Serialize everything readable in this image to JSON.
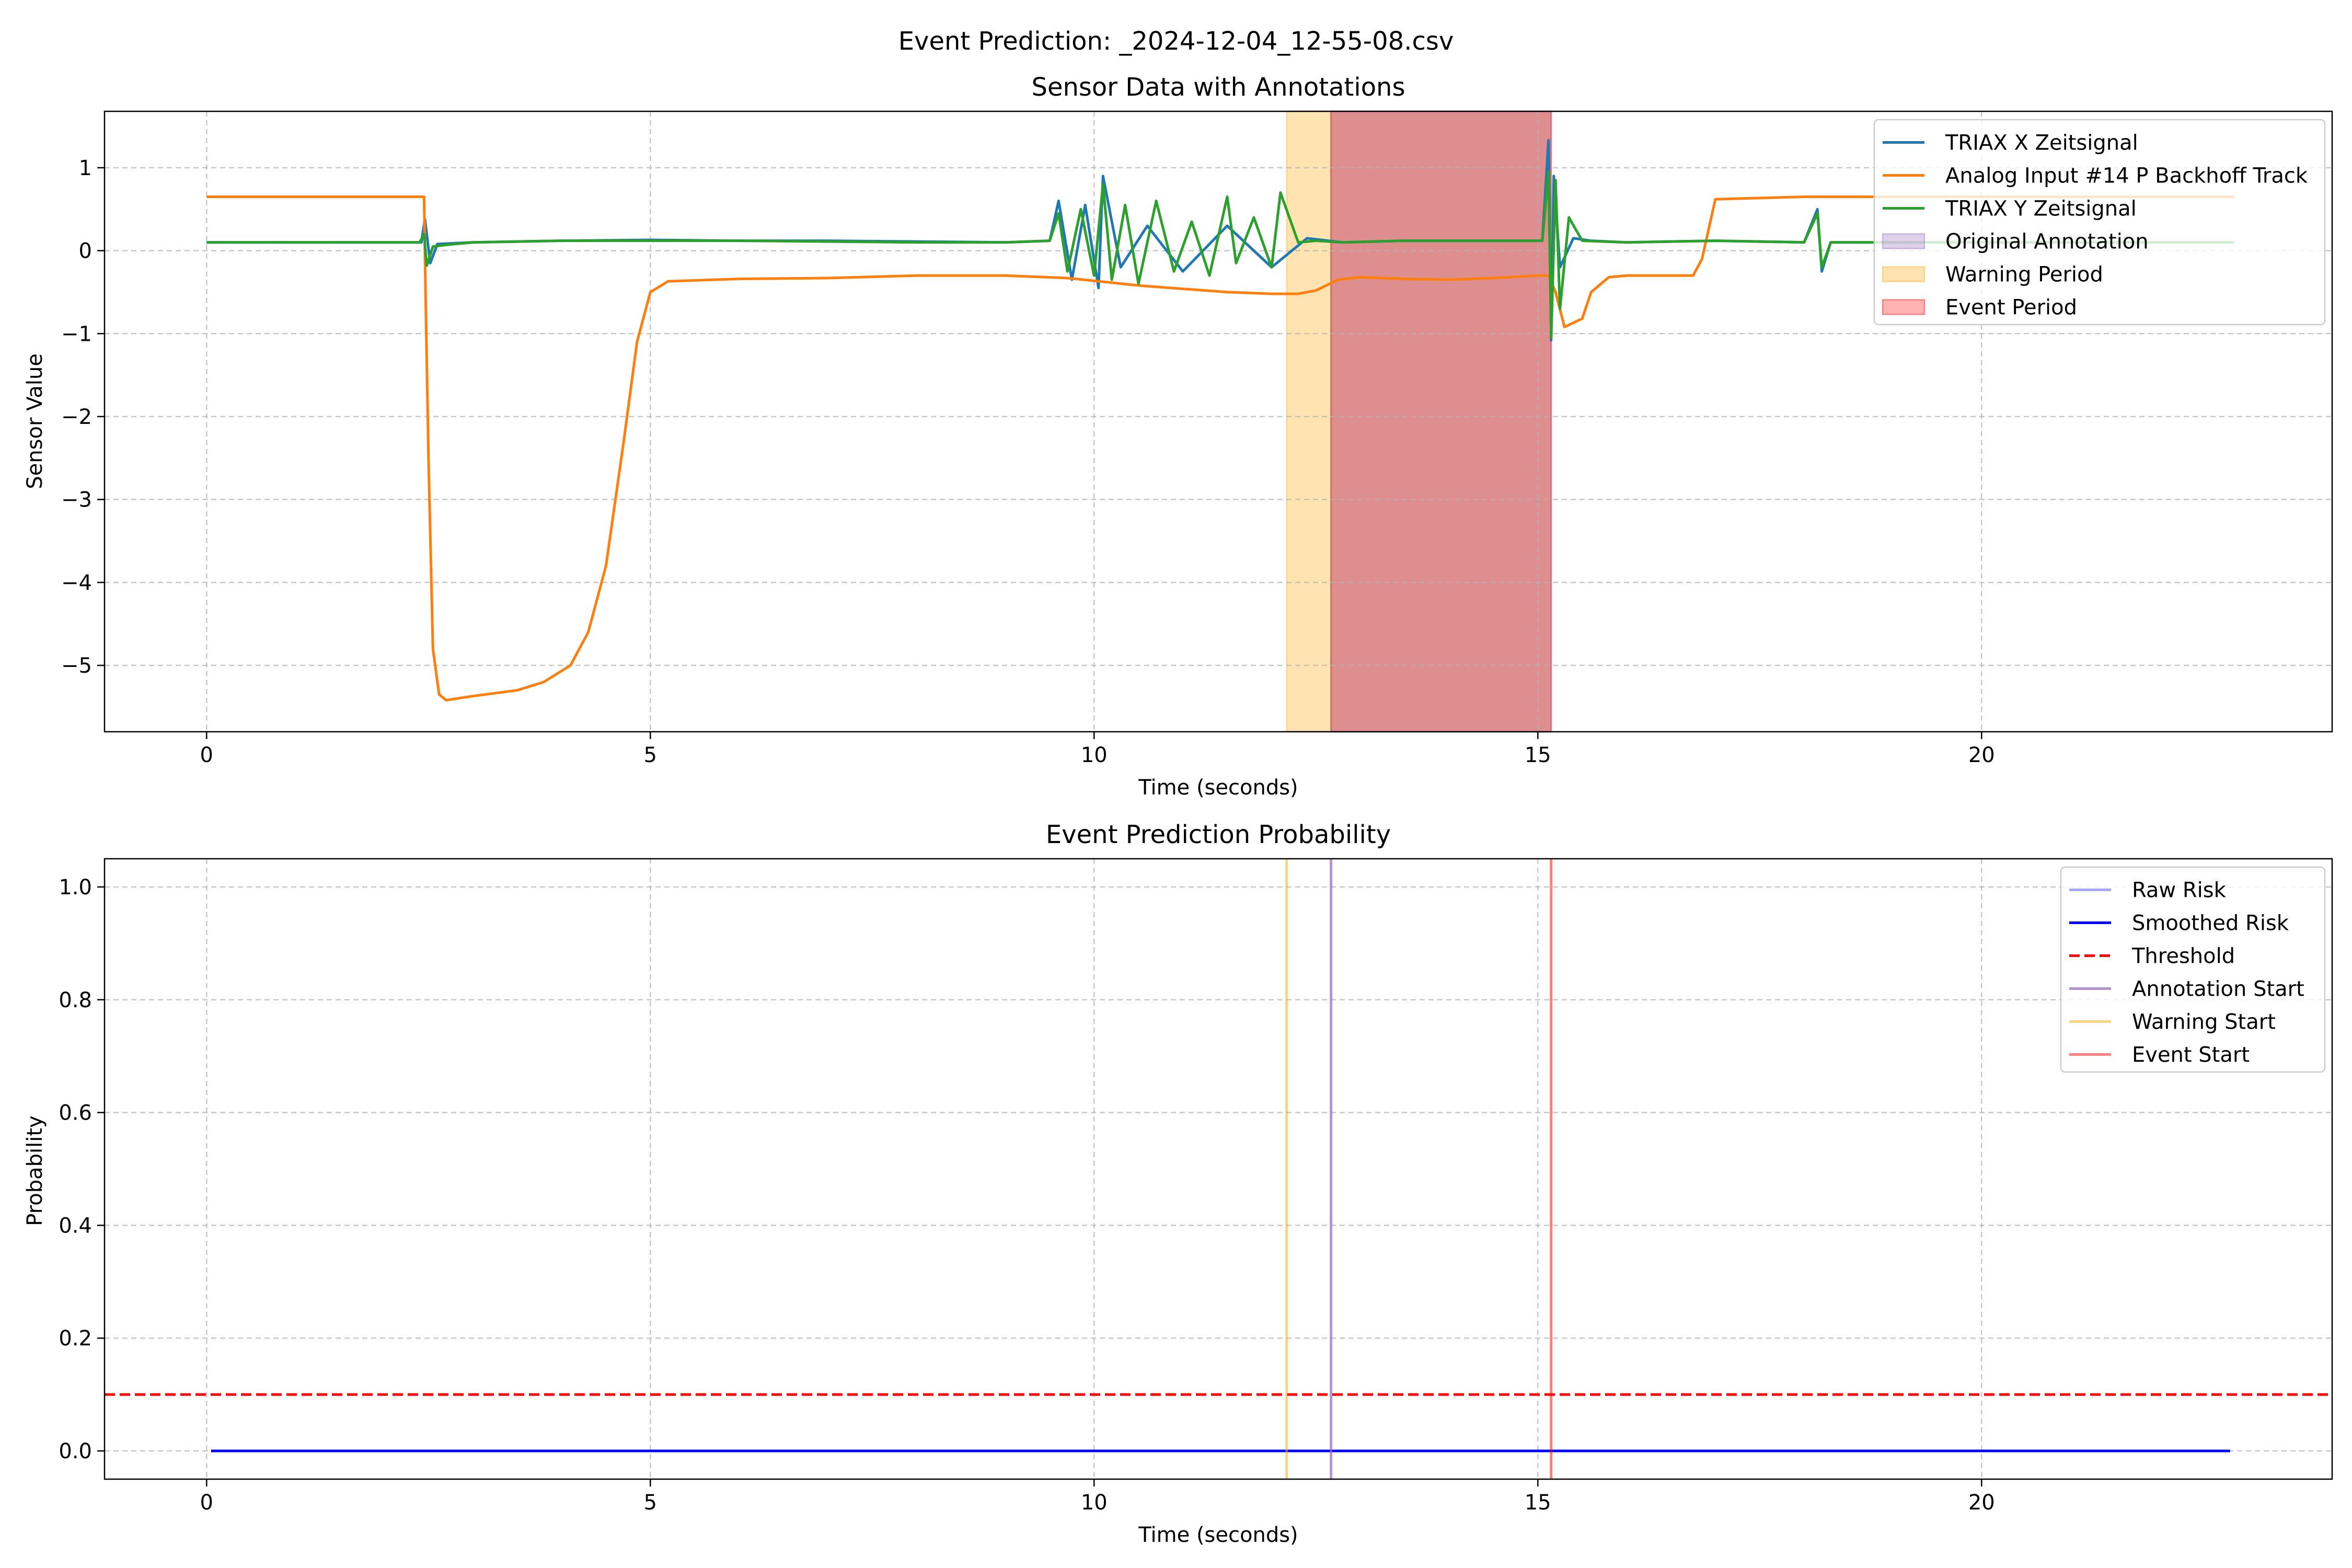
{
  "figure": {
    "suptitle": "Event Prediction: _2024-12-04_12-55-08.csv"
  },
  "colors": {
    "triax_x": "#1f77b4",
    "analog": "#ff7f0e",
    "triax_y": "#2ca02c",
    "annotation": "#9467bd",
    "warning": "#ffa500",
    "event": "#ff0000",
    "risk": "#0000ff",
    "threshold": "#ff0000"
  },
  "chart_data": [
    {
      "type": "line",
      "title": "Sensor Data with Annotations",
      "xlabel": "Time (seconds)",
      "ylabel": "Sensor Value",
      "xlim": [
        -1.15,
        23.95
      ],
      "ylim": [
        -5.8,
        1.68
      ],
      "xticks": [
        0,
        5,
        10,
        15,
        20
      ],
      "yticks": [
        1,
        0,
        -1,
        -2,
        -3,
        -4,
        -5
      ],
      "grid": true,
      "legend_position": "top-right",
      "spans": [
        {
          "name": "Warning Period",
          "x0": 12.17,
          "x1": 12.67,
          "color": "#ffa500",
          "alpha": 0.3
        },
        {
          "name": "Warning Period",
          "x0": 12.67,
          "x1": 15.15,
          "color": "#ffa500",
          "alpha": 0.3
        },
        {
          "name": "Event Period",
          "x0": 12.67,
          "x1": 15.15,
          "color": "#ff0000",
          "alpha": 0.3
        },
        {
          "name": "Original Annotation",
          "x0": 12.67,
          "x1": 15.15,
          "color": "#9467bd",
          "alpha": 0.3
        }
      ],
      "series": [
        {
          "name": "TRIAX X Zeitsignal",
          "color": "#1f77b4",
          "x": [
            0,
            2.3,
            2.42,
            2.46,
            2.52,
            2.6,
            3,
            4,
            5,
            6,
            7,
            8,
            9,
            9.5,
            9.6,
            9.75,
            9.9,
            10.05,
            10.1,
            10.3,
            10.6,
            11,
            11.5,
            12,
            12.4,
            12.8,
            13.5,
            14,
            14.5,
            15.05,
            15.12,
            15.15,
            15.18,
            15.25,
            15.4,
            15.6,
            16,
            17,
            18,
            18.15,
            18.2,
            18.3,
            19,
            20,
            21,
            22,
            22.85
          ],
          "y": [
            0.1,
            0.1,
            0.1,
            0.38,
            -0.15,
            0.08,
            0.1,
            0.12,
            0.13,
            0.12,
            0.12,
            0.11,
            0.1,
            0.12,
            0.6,
            -0.35,
            0.55,
            -0.45,
            0.9,
            -0.2,
            0.3,
            -0.25,
            0.3,
            -0.2,
            0.15,
            0.1,
            0.12,
            0.12,
            0.12,
            0.12,
            1.33,
            -1.08,
            0.9,
            -0.2,
            0.15,
            0.12,
            0.1,
            0.12,
            0.1,
            0.5,
            -0.25,
            0.1,
            0.1,
            0.1,
            0.1,
            0.1,
            0.1
          ]
        },
        {
          "name": "Analog Input #14 P Backhoff Track",
          "color": "#ff7f0e",
          "x": [
            0,
            2.45,
            2.47,
            2.5,
            2.55,
            2.62,
            2.7,
            3,
            3.5,
            3.8,
            4.1,
            4.3,
            4.5,
            4.7,
            4.85,
            5,
            5.2,
            6,
            7,
            8,
            9,
            9.7,
            10.5,
            11,
            11.5,
            12,
            12.3,
            12.5,
            12.75,
            13,
            13.5,
            14,
            14.5,
            15,
            15.12,
            15.2,
            15.3,
            15.5,
            15.6,
            15.8,
            16,
            16.5,
            16.75,
            16.85,
            17,
            18,
            19,
            20,
            21,
            22,
            22.85
          ],
          "y": [
            0.65,
            0.65,
            -0.7,
            -2.5,
            -4.8,
            -5.35,
            -5.42,
            -5.37,
            -5.3,
            -5.2,
            -5.0,
            -4.6,
            -3.8,
            -2.3,
            -1.1,
            -0.5,
            -0.37,
            -0.34,
            -0.33,
            -0.3,
            -0.3,
            -0.33,
            -0.42,
            -0.46,
            -0.5,
            -0.52,
            -0.52,
            -0.48,
            -0.35,
            -0.32,
            -0.34,
            -0.35,
            -0.33,
            -0.3,
            -0.3,
            -0.5,
            -0.92,
            -0.82,
            -0.5,
            -0.32,
            -0.3,
            -0.3,
            -0.3,
            -0.1,
            0.62,
            0.65,
            0.65,
            0.65,
            0.65,
            0.65,
            0.65
          ]
        },
        {
          "name": "TRIAX Y Zeitsignal",
          "color": "#2ca02c",
          "x": [
            0,
            2.4,
            2.45,
            2.48,
            2.55,
            2.7,
            3,
            4,
            5,
            6,
            7,
            8,
            9,
            9.5,
            9.6,
            9.7,
            9.85,
            10,
            10.1,
            10.2,
            10.35,
            10.5,
            10.7,
            10.9,
            11.1,
            11.3,
            11.5,
            11.6,
            11.8,
            12,
            12.1,
            12.3,
            12.5,
            12.8,
            13.5,
            14.5,
            15.05,
            15.12,
            15.15,
            15.2,
            15.25,
            15.35,
            15.5,
            16,
            17,
            18,
            18.15,
            18.2,
            18.3,
            19,
            20,
            21,
            22,
            22.85
          ],
          "y": [
            0.1,
            0.1,
            0.2,
            -0.18,
            0.05,
            0.07,
            0.1,
            0.12,
            0.12,
            0.12,
            0.11,
            0.1,
            0.1,
            0.12,
            0.45,
            -0.25,
            0.5,
            -0.3,
            0.8,
            -0.35,
            0.55,
            -0.4,
            0.6,
            -0.25,
            0.35,
            -0.3,
            0.65,
            -0.15,
            0.4,
            -0.2,
            0.7,
            0.1,
            0.12,
            0.1,
            0.12,
            0.12,
            0.12,
            0.95,
            -1.05,
            0.85,
            -0.7,
            0.4,
            0.12,
            0.1,
            0.12,
            0.1,
            0.45,
            -0.2,
            0.1,
            0.1,
            0.1,
            0.1,
            0.1,
            0.1
          ]
        }
      ],
      "legend": [
        {
          "label": "TRIAX X Zeitsignal",
          "kind": "line",
          "color": "#1f77b4"
        },
        {
          "label": "Analog Input #14 P Backhoff Track",
          "kind": "line",
          "color": "#ff7f0e"
        },
        {
          "label": "TRIAX Y Zeitsignal",
          "kind": "line",
          "color": "#2ca02c"
        },
        {
          "label": "Original Annotation",
          "kind": "patch",
          "color": "#9467bd"
        },
        {
          "label": "Warning Period",
          "kind": "patch",
          "color": "#ffa500"
        },
        {
          "label": "Event Period",
          "kind": "patch",
          "color": "#ff0000"
        }
      ]
    },
    {
      "type": "line",
      "title": "Event Prediction Probability",
      "xlabel": "Time (seconds)",
      "ylabel": "Probability",
      "xlim": [
        -1.15,
        23.95
      ],
      "ylim": [
        -0.05,
        1.05
      ],
      "xticks": [
        0,
        5,
        10,
        15,
        20
      ],
      "yticks": [
        1.0,
        0.8,
        0.6,
        0.4,
        0.2,
        0.0
      ],
      "ytick_labels": [
        "1.0",
        "0.8",
        "0.6",
        "0.4",
        "0.2",
        "0.0"
      ],
      "grid": true,
      "legend_position": "top-right",
      "threshold": 0.1,
      "vlines": [
        {
          "name": "Warning Start",
          "x": 12.17,
          "color": "#ffa500"
        },
        {
          "name": "Annotation Start",
          "x": 12.67,
          "color": "#9467bd"
        },
        {
          "name": "Event Start",
          "x": 15.15,
          "color": "#ff0000"
        }
      ],
      "series": [
        {
          "name": "Raw Risk",
          "color": "#0000ff",
          "alpha": 0.35,
          "x": [
            0.05,
            22.8
          ],
          "y": [
            0,
            0
          ]
        },
        {
          "name": "Smoothed Risk",
          "color": "#0000ff",
          "alpha": 1.0,
          "x": [
            0.05,
            22.8
          ],
          "y": [
            0,
            0
          ]
        }
      ],
      "legend": [
        {
          "label": "Raw Risk",
          "kind": "line",
          "color": "#0000ff",
          "alpha": 0.35
        },
        {
          "label": "Smoothed Risk",
          "kind": "line",
          "color": "#0000ff",
          "alpha": 1.0
        },
        {
          "label": "Threshold",
          "kind": "dashed",
          "color": "#ff0000",
          "alpha": 1.0
        },
        {
          "label": "Annotation Start",
          "kind": "line",
          "color": "#9467bd",
          "alpha": 0.7
        },
        {
          "label": "Warning Start",
          "kind": "line",
          "color": "#ffa500",
          "alpha": 0.5
        },
        {
          "label": "Event Start",
          "kind": "line",
          "color": "#ff0000",
          "alpha": 0.5
        }
      ]
    }
  ]
}
